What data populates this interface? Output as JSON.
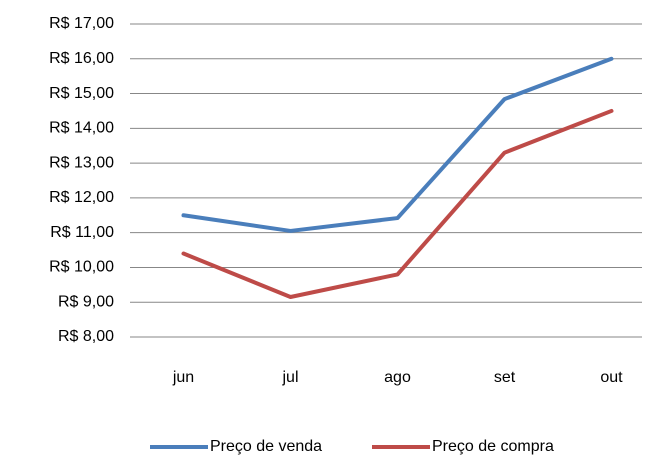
{
  "chart_data": {
    "type": "line",
    "categories": [
      "jun",
      "jul",
      "ago",
      "set",
      "out"
    ],
    "series": [
      {
        "name": "Preço de venda",
        "color": "#4a7ebb",
        "values": [
          11.5,
          11.05,
          11.42,
          14.84,
          16.0
        ]
      },
      {
        "name": "Preço de compra",
        "color": "#be4b48",
        "values": [
          10.4,
          9.15,
          9.8,
          13.3,
          14.5
        ]
      }
    ],
    "ylim": [
      8,
      17
    ],
    "yticks": [
      {
        "value": 8,
        "label": "R$ 8,00"
      },
      {
        "value": 9,
        "label": "R$ 9,00"
      },
      {
        "value": 10,
        "label": "R$ 10,00"
      },
      {
        "value": 11,
        "label": "R$ 11,00"
      },
      {
        "value": 12,
        "label": "R$ 12,00"
      },
      {
        "value": 13,
        "label": "R$ 13,00"
      },
      {
        "value": 14,
        "label": "R$ 14,00"
      },
      {
        "value": 15,
        "label": "R$ 15,00"
      },
      {
        "value": 16,
        "label": "R$ 16,00"
      },
      {
        "value": 17,
        "label": "R$ 17,00"
      }
    ],
    "grid": true,
    "legend": "bottom"
  }
}
